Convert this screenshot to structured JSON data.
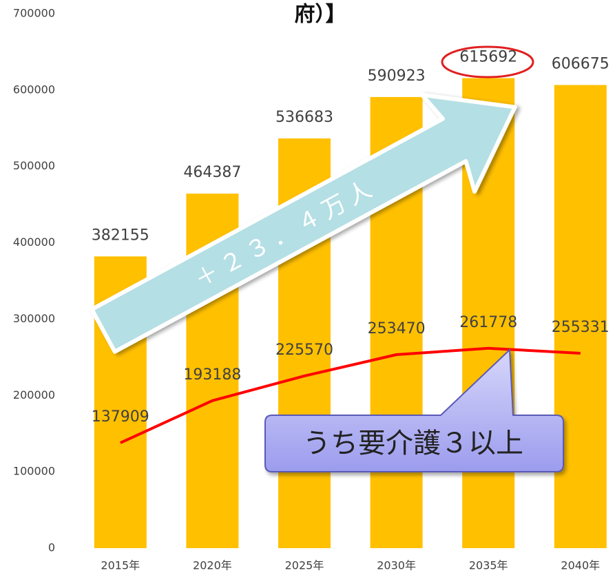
{
  "chart_data": {
    "type": "bar",
    "title": "府）】",
    "categories": [
      "2015年",
      "2020年",
      "2025年",
      "2030年",
      "2035年",
      "2040年"
    ],
    "series": [
      {
        "type": "bar",
        "color": "#ffc000",
        "values": [
          382155,
          464387,
          536683,
          590923,
          615692,
          606675
        ]
      },
      {
        "type": "line",
        "color": "#ff0000",
        "values": [
          137909,
          193188,
          225570,
          253470,
          261778,
          255331
        ]
      }
    ],
    "ylim": [
      0,
      700000
    ],
    "yticks": [
      0,
      100000,
      200000,
      300000,
      400000,
      500000,
      600000,
      700000
    ],
    "grid": false,
    "arrow_annotation": "＋２３．４万人",
    "callout_annotation": "うち要介護３以上"
  }
}
